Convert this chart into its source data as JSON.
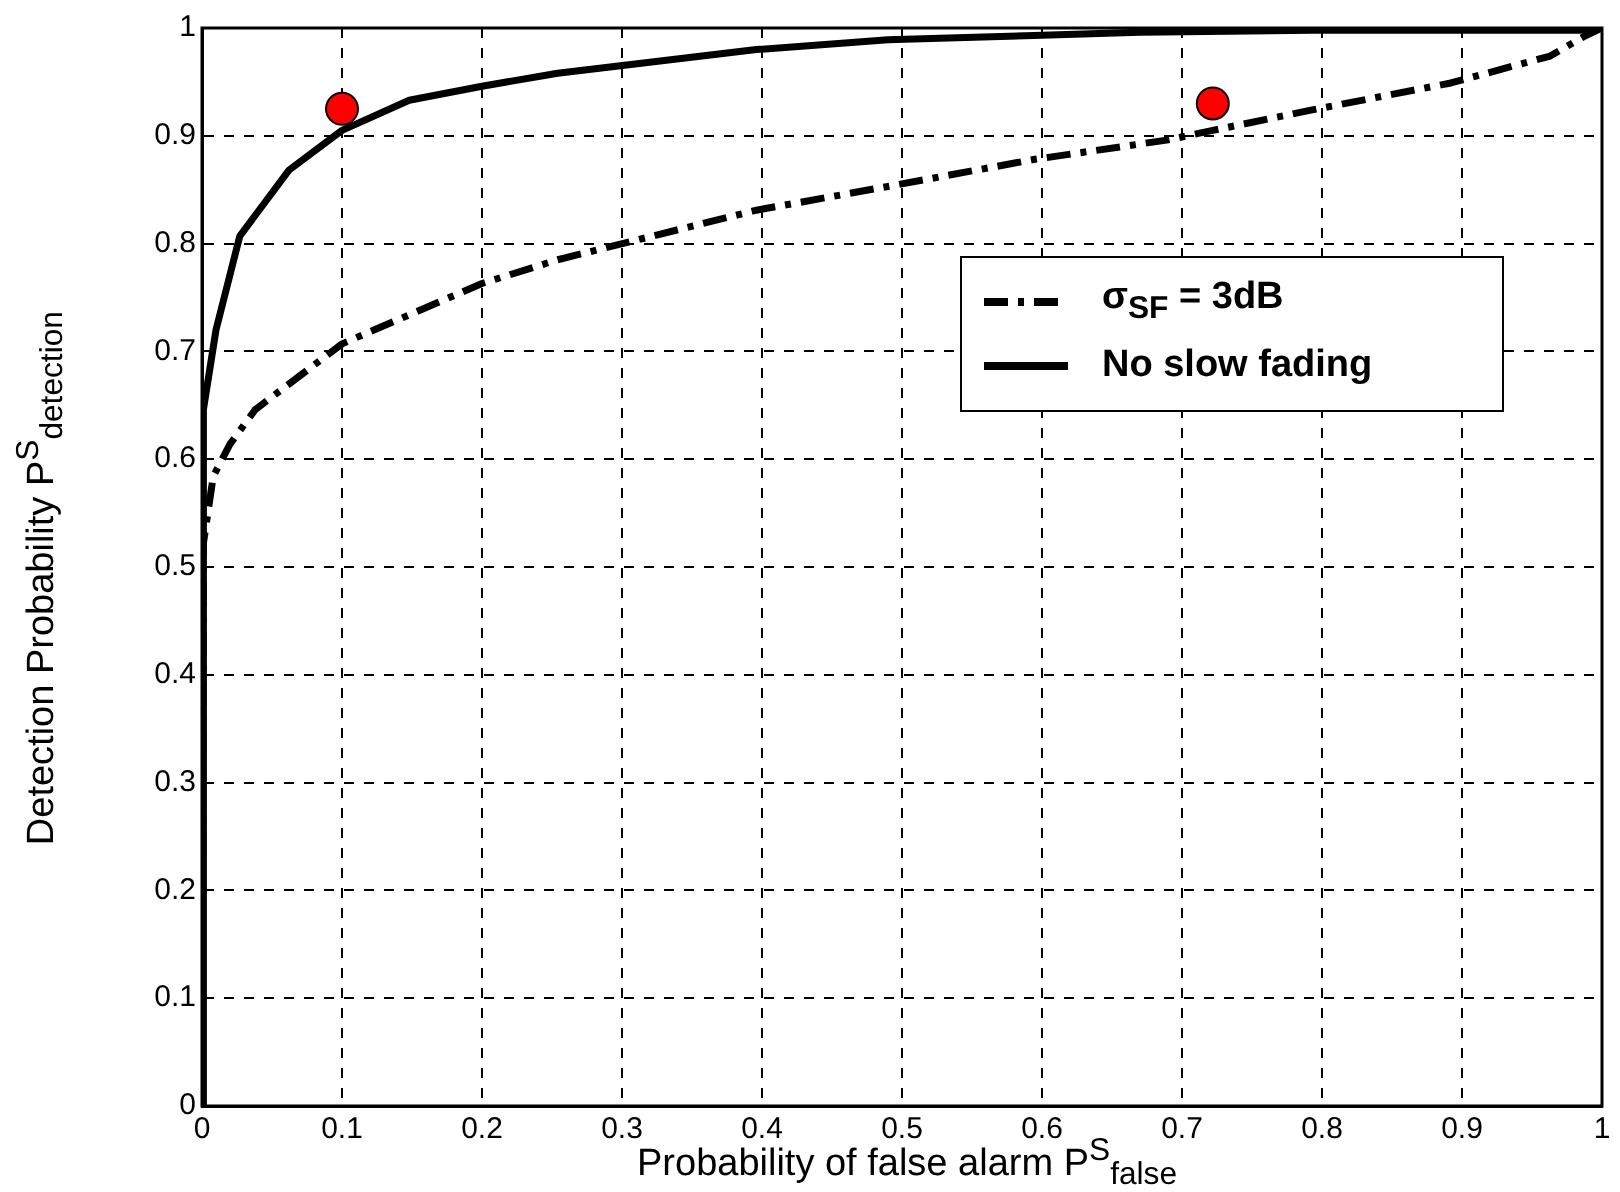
{
  "chart_data": {
    "type": "line",
    "xlabel": "Probability of false alarm P$^{S}$$_{false}$",
    "ylabel": "Detection Probability P$^{S}$$_{detection}$",
    "xlim": [
      0,
      1
    ],
    "ylim": [
      0,
      1
    ],
    "xticks": [
      0,
      0.1,
      0.2,
      0.3,
      0.4,
      0.5,
      0.6,
      0.7,
      0.8,
      0.9,
      1
    ],
    "yticks": [
      0,
      0.1,
      0.2,
      0.3,
      0.4,
      0.5,
      0.6,
      0.7,
      0.8,
      0.9,
      1
    ],
    "grid": true,
    "legend": "right",
    "marker": "none",
    "series": [
      {
        "name": "σ$_{SF}$ = 3dB",
        "color": "#000000",
        "line_style": "dashed",
        "x": [
          0,
          0.001,
          0.008,
          0.02,
          0.038,
          0.1,
          0.2,
          0.254,
          0.396,
          0.49,
          0.594,
          0.689,
          0.722,
          0.793,
          0.892,
          0.963,
          0.987,
          1
        ],
        "values": [
          0,
          0.522,
          0.584,
          0.614,
          0.646,
          0.707,
          0.763,
          0.785,
          0.831,
          0.853,
          0.878,
          0.896,
          0.905,
          0.924,
          0.949,
          0.974,
          0.992,
          1
        ]
      },
      {
        "name": "No slow fading",
        "color": "#000000",
        "line_style": "solid",
        "x": [
          0,
          0.001,
          0.01,
          0.027,
          0.062,
          0.1,
          0.148,
          0.2,
          0.254,
          0.396,
          0.49,
          0.594,
          0.67,
          0.793,
          0.987,
          1
        ],
        "values": [
          0,
          0.646,
          0.72,
          0.807,
          0.868,
          0.905,
          0.933,
          0.946,
          0.958,
          0.98,
          0.989,
          0.993,
          0.996,
          0.998,
          0.998,
          1
        ]
      },
      {
        "type": "scatter",
        "color": "#ff0000",
        "marker": "circle",
        "x": [
          0.1,
          0.722
        ],
        "values": [
          0.925,
          0.93
        ]
      }
    ]
  }
}
